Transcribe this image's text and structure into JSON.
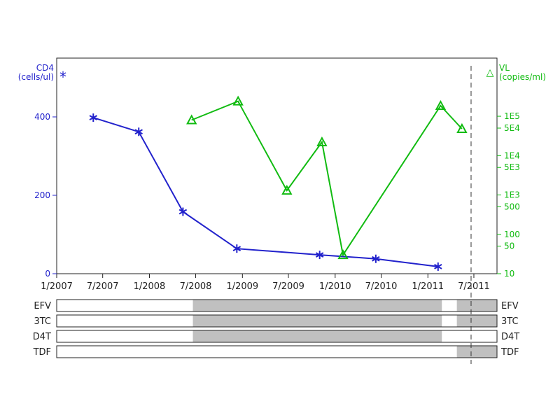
{
  "chart_data": {
    "type": "line",
    "x_axis": {
      "ticks": [
        "1/2007",
        "7/2007",
        "1/2008",
        "7/2008",
        "1/2009",
        "7/2009",
        "1/2010",
        "7/2010",
        "1/2011",
        "7/2011"
      ],
      "range": [
        "2007-01-01",
        "2011-09-30"
      ]
    },
    "left_axis": {
      "label_line1": "CD4",
      "label_line2": "(cells/ul)",
      "legend_marker": "*",
      "ticks": [
        0,
        200,
        400
      ],
      "ylim": [
        0,
        550
      ],
      "color": "#2222cc"
    },
    "right_axis": {
      "label_line1": "VL",
      "label_line2": "(copies/ml)",
      "legend_marker": "△",
      "scale": "log",
      "ticks": [
        10,
        50,
        100,
        500,
        1000,
        5000,
        10000,
        50000,
        100000
      ],
      "tick_labels": [
        "10",
        "50",
        "100",
        "500",
        "1E3",
        "5E3",
        "1E4",
        "5E4",
        "1E5"
      ],
      "ylim": [
        10,
        3000000
      ],
      "color": "#11bb11"
    },
    "series": [
      {
        "axis": "left",
        "marker": "asterisk",
        "color": "#2222cc",
        "points": [
          {
            "x": "2007-05-25",
            "y": 398
          },
          {
            "x": "2007-11-20",
            "y": 362
          },
          {
            "x": "2008-05-12",
            "y": 158
          },
          {
            "x": "2008-12-10",
            "y": 64
          },
          {
            "x": "2009-11-01",
            "y": 48
          },
          {
            "x": "2010-06-10",
            "y": 38
          },
          {
            "x": "2011-02-10",
            "y": 18
          }
        ]
      },
      {
        "axis": "right",
        "marker": "triangle",
        "color": "#11bb11",
        "points": [
          {
            "x": "2008-06-15",
            "y": 80000
          },
          {
            "x": "2008-12-15",
            "y": 240000
          },
          {
            "x": "2009-06-25",
            "y": 1300
          },
          {
            "x": "2009-11-10",
            "y": 22000
          },
          {
            "x": "2010-02-01",
            "y": 30
          },
          {
            "x": "2011-02-20",
            "y": 185000
          },
          {
            "x": "2011-05-15",
            "y": 48000
          }
        ]
      }
    ],
    "reference_line": {
      "x": "2011-06-20",
      "style": "dashed"
    },
    "regimen": {
      "rows": [
        "EFV",
        "3TC",
        "D4T",
        "TDF"
      ],
      "on_periods": [
        [
          [
            "2008-06-20",
            "2011-02-25"
          ],
          [
            "2011-04-25",
            "2011-09-30"
          ]
        ],
        [
          [
            "2008-06-20",
            "2011-02-25"
          ],
          [
            "2011-04-25",
            "2011-09-30"
          ]
        ],
        [
          [
            "2008-06-20",
            "2011-02-25"
          ]
        ],
        [
          [
            "2011-04-25",
            "2011-09-30"
          ]
        ]
      ]
    }
  }
}
